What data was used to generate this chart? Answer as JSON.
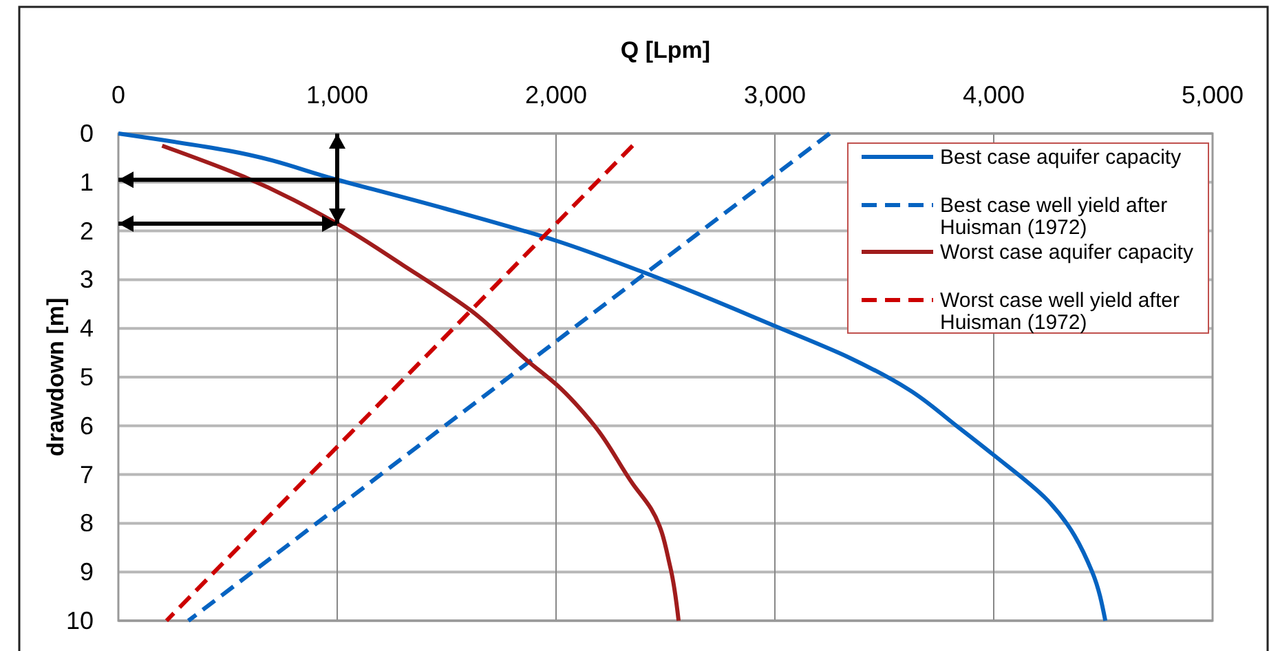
{
  "chart_data": {
    "type": "line",
    "xlabel": "Q [Lpm]",
    "ylabel": "drawdown [m]",
    "xlim": [
      0,
      5000
    ],
    "xticks": [
      0,
      {
        "value": 1000,
        "label": "1,000"
      },
      {
        "value": 2000,
        "label": "2,000"
      },
      {
        "value": 3000,
        "label": "3,000"
      },
      {
        "value": 4000,
        "label": "4,000"
      },
      {
        "value": 5000,
        "label": "5,000"
      }
    ],
    "ylim": [
      10,
      0
    ],
    "yticks": [
      0,
      1,
      2,
      3,
      4,
      5,
      6,
      7,
      8,
      9,
      10
    ],
    "grid": true,
    "legend": "top right",
    "series": [
      {
        "name": "Best case aquifer capacity",
        "color": "#0563c1",
        "line_style": "solid",
        "x": [
          0,
          500,
          1000,
          1500,
          2000,
          2400,
          3000,
          3340,
          3610,
          3830,
          4000,
          4240,
          4450,
          4510
        ],
        "values": [
          0,
          0.35,
          0.95,
          1.55,
          2.2,
          2.85,
          3.95,
          4.6,
          5.25,
          6.0,
          6.6,
          7.5,
          9.0,
          10
        ]
      },
      {
        "name": "Best case well yield after Huisman (1972)",
        "color": "#0563c1",
        "line_style": "dashed",
        "x": [
          3250,
          320
        ],
        "values": [
          0,
          10
        ]
      },
      {
        "name": "Worst case aquifer capacity",
        "color": "#a01c1c",
        "line_style": "solid",
        "x": [
          200,
          570,
          1000,
          1300,
          1616,
          1868,
          2006,
          2176,
          2352,
          2434,
          2522,
          2560
        ],
        "values": [
          0.25,
          0.88,
          1.85,
          2.7,
          3.65,
          4.66,
          5.17,
          6.0,
          7.2,
          7.7,
          8.9,
          10
        ]
      },
      {
        "name": "Worst case well yield after Huisman (1972)",
        "color": "#cc0000",
        "line_style": "dashed",
        "x": [
          2350,
          220
        ],
        "values": [
          0.25,
          10
        ]
      }
    ]
  }
}
